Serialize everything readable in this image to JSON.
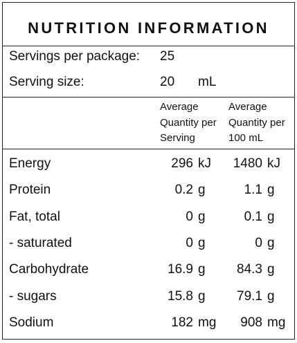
{
  "title": "NUTRITION INFORMATION",
  "servings_per_package": {
    "label": "Servings per package:",
    "value": "25"
  },
  "serving_size": {
    "label": "Serving size:",
    "value": "20",
    "unit": "mL"
  },
  "headers": {
    "per_serving": [
      "Average",
      "Quantity per",
      "Serving"
    ],
    "per_100": [
      "Average",
      "Quantity per",
      "100 mL"
    ]
  },
  "rows": [
    {
      "name": "Energy",
      "serving": "296",
      "serving_unit": "kJ",
      "per100": "1480",
      "per100_unit": "kJ"
    },
    {
      "name": "Protein",
      "serving": "0.2",
      "serving_unit": "g",
      "per100": "1.1",
      "per100_unit": "g"
    },
    {
      "name": "Fat, total",
      "serving": "0",
      "serving_unit": "g",
      "per100": "0.1",
      "per100_unit": "g"
    },
    {
      "name": "- saturated",
      "serving": "0",
      "serving_unit": "g",
      "per100": "0",
      "per100_unit": "g"
    },
    {
      "name": "Carbohydrate",
      "serving": "16.9",
      "serving_unit": "g",
      "per100": "84.3",
      "per100_unit": "g"
    },
    {
      "name": "- sugars",
      "serving": "15.8",
      "serving_unit": "g",
      "per100": "79.1",
      "per100_unit": "g"
    },
    {
      "name": "Sodium",
      "serving": "182",
      "serving_unit": "mg",
      "per100": "908",
      "per100_unit": "mg"
    }
  ]
}
